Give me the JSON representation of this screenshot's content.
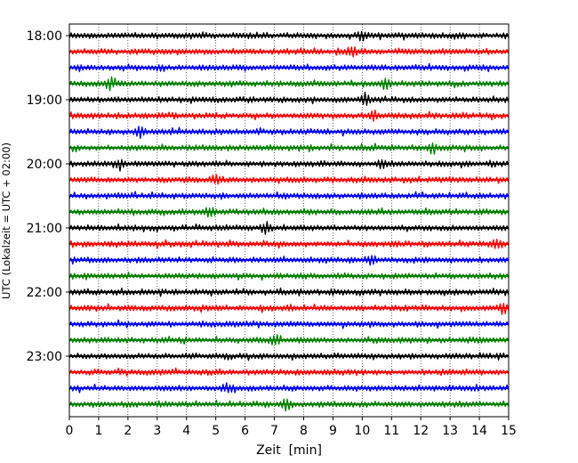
{
  "chart_data": {
    "type": "line",
    "title": "",
    "xlabel": "Zeit  [min]",
    "ylabel": "UTC (Lokalzeit = UTC + 02:00)",
    "xlim": [
      0,
      15
    ],
    "x_ticks": [
      "0",
      "1",
      "2",
      "3",
      "4",
      "5",
      "6",
      "7",
      "8",
      "9",
      "10",
      "11",
      "12",
      "13",
      "14",
      "15"
    ],
    "trace_start_times": [
      "18:00",
      "18:15",
      "18:30",
      "18:45",
      "19:00",
      "19:15",
      "19:30",
      "19:45",
      "20:00",
      "20:15",
      "20:30",
      "20:45",
      "21:00",
      "21:15",
      "21:30",
      "21:45",
      "22:00",
      "22:15",
      "22:30",
      "22:45",
      "23:00",
      "23:15",
      "23:30",
      "23:45"
    ],
    "y_tick_labels": [
      "18:00",
      "19:00",
      "20:00",
      "21:00",
      "22:00",
      "23:00"
    ],
    "trace_minutes_per_line": 15,
    "color_cycle": [
      "#000000",
      "#ff0000",
      "#0000ff",
      "#008000"
    ],
    "grid": "vertical dotted lines at each minute",
    "legend": "none",
    "notable_events": [
      {
        "trace": "18:00",
        "minute": 10.0
      },
      {
        "trace": "18:15",
        "minute": 9.6
      },
      {
        "trace": "18:45",
        "minute": 1.4
      },
      {
        "trace": "18:45",
        "minute": 10.8
      },
      {
        "trace": "19:00",
        "minute": 10.1
      },
      {
        "trace": "19:15",
        "minute": 10.4
      },
      {
        "trace": "19:30",
        "minute": 2.4
      },
      {
        "trace": "19:45",
        "minute": 12.4
      },
      {
        "trace": "20:00",
        "minute": 1.7
      },
      {
        "trace": "20:00",
        "minute": 10.7
      },
      {
        "trace": "20:15",
        "minute": 5.0
      },
      {
        "trace": "20:45",
        "minute": 4.8
      },
      {
        "trace": "21:00",
        "minute": 6.7
      },
      {
        "trace": "21:15",
        "minute": 14.6
      },
      {
        "trace": "21:30",
        "minute": 10.3
      },
      {
        "trace": "22:15",
        "minute": 14.8
      },
      {
        "trace": "22:45",
        "minute": 7.0
      },
      {
        "trace": "23:30",
        "minute": 5.4
      },
      {
        "trace": "23:45",
        "minute": 7.4
      }
    ]
  }
}
